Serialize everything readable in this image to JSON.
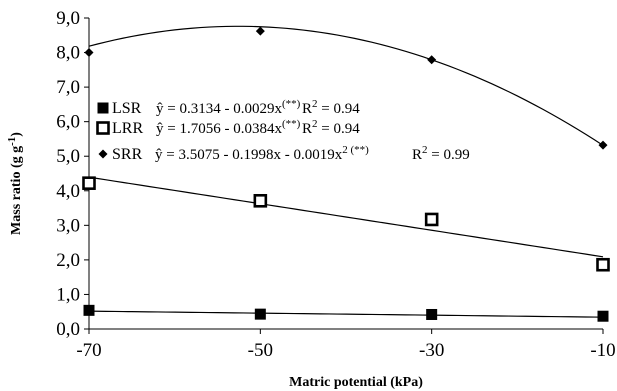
{
  "chart_data": {
    "type": "scatter",
    "xlabel": "Matric potential (kPa)",
    "ylabel": "Mass ratio (g g-1)",
    "ylabel_parts": {
      "main": "Mass ratio (g g",
      "sup": "-1",
      "end": ")"
    },
    "xlim": [
      -70,
      -10
    ],
    "ylim": [
      0,
      9
    ],
    "xticks": [
      -70,
      -50,
      -30,
      -10
    ],
    "yticks": [
      0,
      1,
      2,
      3,
      4,
      5,
      6,
      7,
      8,
      9
    ],
    "xtick_labels": [
      "-70",
      "-50",
      "-30",
      "-10"
    ],
    "ytick_labels": [
      "0,0",
      "1,0",
      "2,0",
      "3,0",
      "4,0",
      "5,0",
      "6,0",
      "7,0",
      "8,0",
      "9,0"
    ],
    "grid": false,
    "legend_position": "left-center",
    "series": [
      {
        "name": "LSR",
        "marker": "filled-square",
        "x": [
          -70,
          -50,
          -30,
          -10
        ],
        "y": [
          0.54,
          0.43,
          0.42,
          0.37
        ],
        "fit": {
          "type": "linear",
          "coef": [
            0.3134,
            -0.0029
          ]
        },
        "equation": {
          "main": "ŷ = 0.3134 - 0.0029x",
          "sig": "(**)",
          "r2_label": "R",
          "r2_exp": "2",
          "r2_value": " = 0.94"
        }
      },
      {
        "name": "LRR",
        "marker": "open-square",
        "x": [
          -70,
          -50,
          -30,
          -10
        ],
        "y": [
          4.22,
          3.71,
          3.17,
          1.86
        ],
        "fit": {
          "type": "linear",
          "coef": [
            1.7056,
            -0.0384
          ]
        },
        "equation": {
          "main": "ŷ = 1.7056 - 0.0384x",
          "sig": "(**)",
          "r2_label": "R",
          "r2_exp": "2",
          "r2_value": " = 0.94"
        }
      },
      {
        "name": "SRR",
        "marker": "diamond",
        "x": [
          -70,
          -50,
          -30,
          -10
        ],
        "y": [
          8.0,
          8.62,
          7.79,
          5.32
        ],
        "fit": {
          "type": "quadratic",
          "coef": [
            3.5075,
            -0.1998,
            -0.0019
          ]
        },
        "equation": {
          "main": "ŷ = 3.5075 - 0.1998x - 0.0019x",
          "exp": "2",
          "sig": " (**)",
          "r2_label": "R",
          "r2_exp": "2",
          "r2_value": " = 0.99"
        }
      }
    ]
  }
}
